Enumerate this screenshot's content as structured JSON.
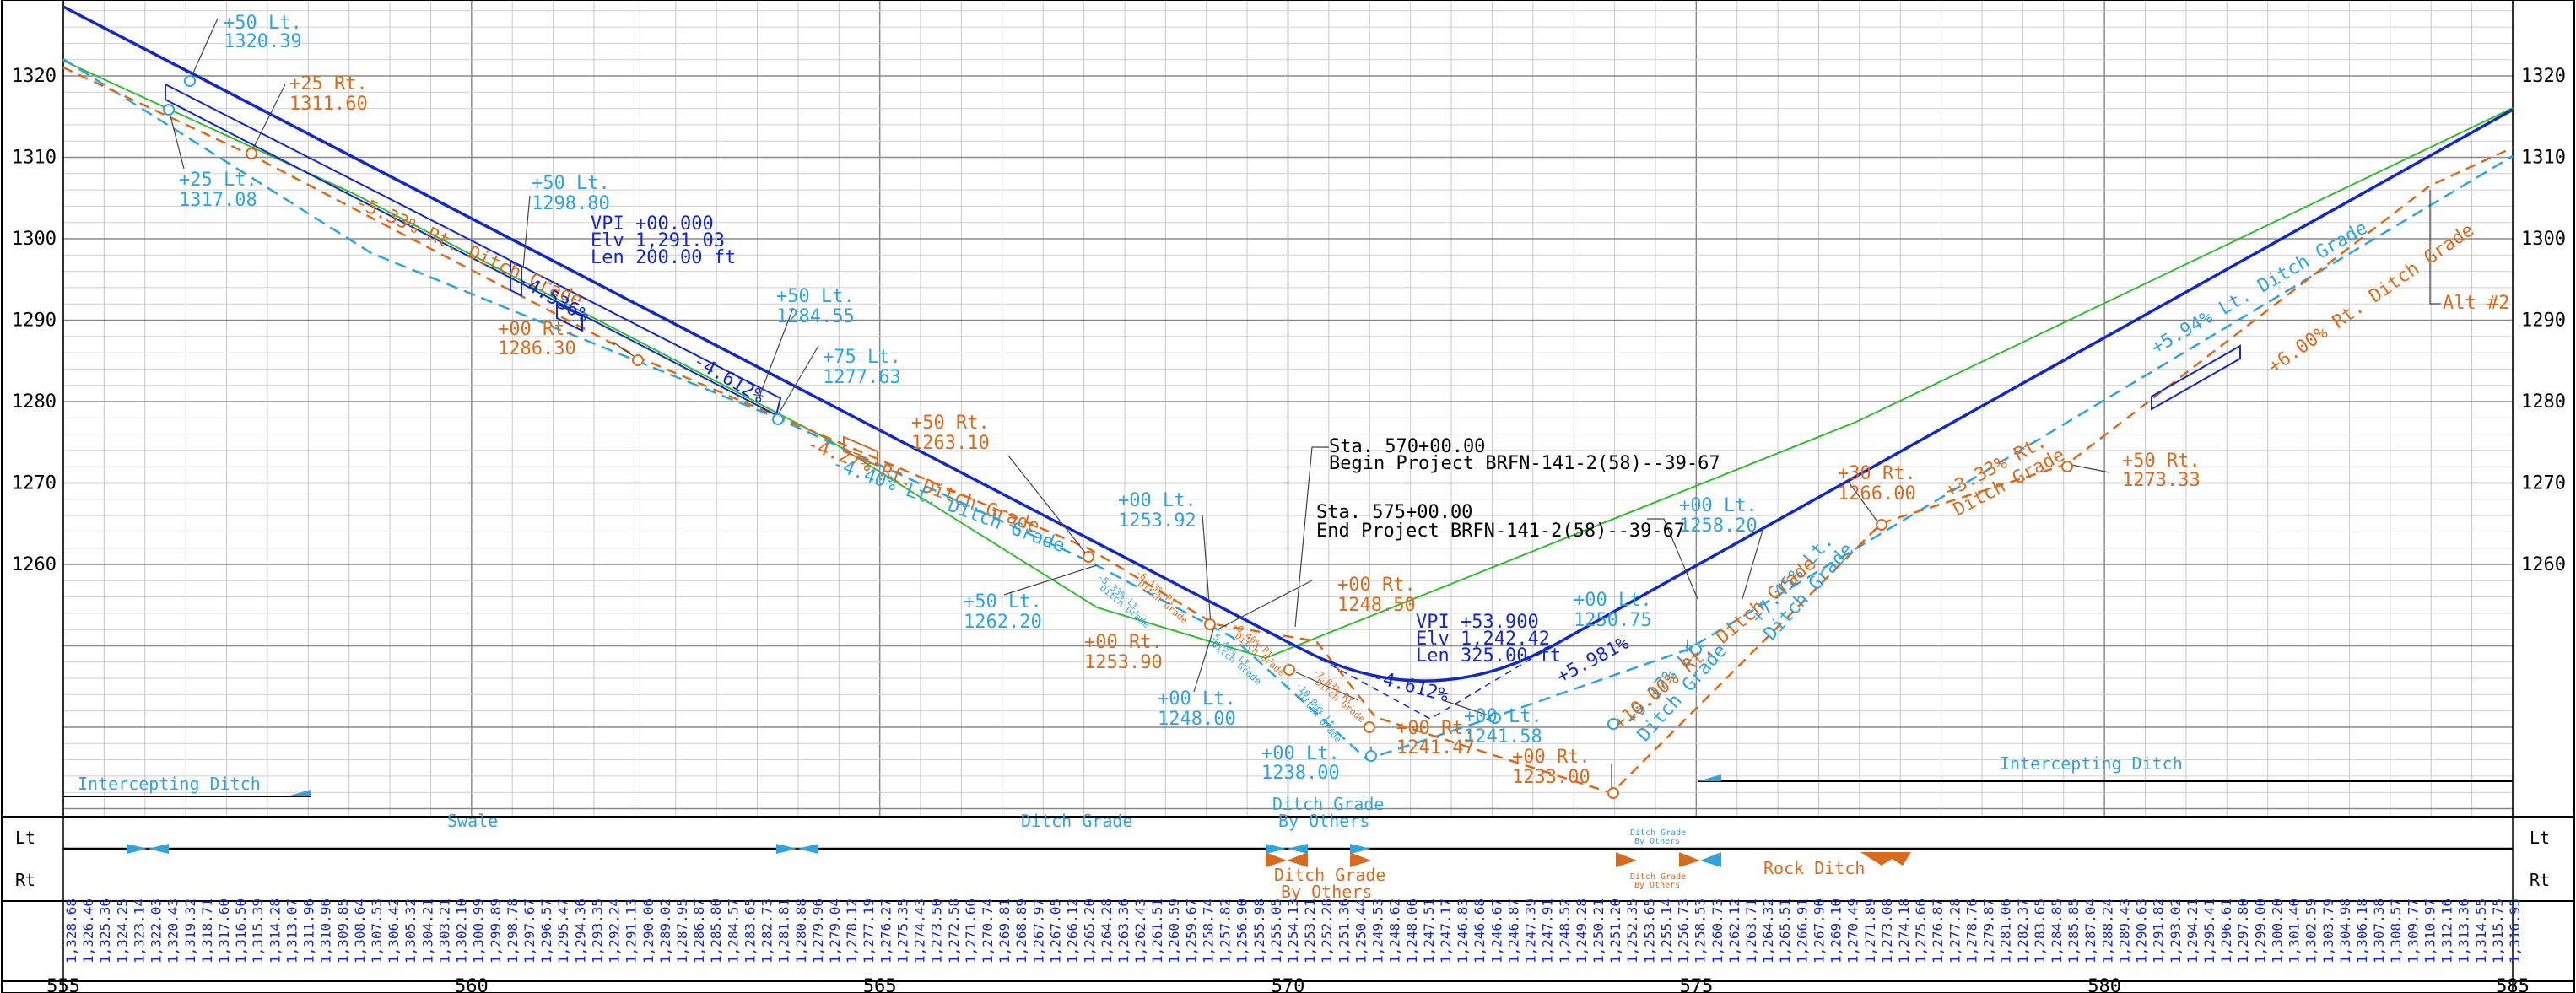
{
  "axes": {
    "elev_labels": [
      "1320",
      "1310",
      "1300",
      "1290",
      "1280",
      "1270",
      "1260"
    ],
    "station_labels": [
      "555",
      "560",
      "565",
      "570",
      "575",
      "580",
      "585"
    ]
  },
  "profile_labels": [
    {
      "text": "+50 Lt.",
      "c": "blue"
    },
    {
      "text": "1320.39",
      "c": "blue"
    },
    {
      "text": "+25 Rt.",
      "c": "orange"
    },
    {
      "text": "1311.60",
      "c": "orange"
    },
    {
      "text": "+25 Lt.",
      "c": "blue"
    },
    {
      "text": "1317.08",
      "c": "blue"
    },
    {
      "text": "+50 Lt.",
      "c": "blue"
    },
    {
      "text": "1298.80",
      "c": "blue"
    },
    {
      "text": "VPI +00.000",
      "c": "navy"
    },
    {
      "text": "Elv 1,291.03",
      "c": "navy"
    },
    {
      "text": "Len 200.00 ft",
      "c": "navy"
    },
    {
      "text": "-5.33% Rt. Ditch Grade",
      "c": "orange"
    },
    {
      "text": "-4.536%",
      "c": "navy"
    },
    {
      "text": "+00 Rt.",
      "c": "orange"
    },
    {
      "text": "1286.30",
      "c": "orange"
    },
    {
      "text": "+50 Lt.",
      "c": "blue"
    },
    {
      "text": "1284.55",
      "c": "blue"
    },
    {
      "text": "-4.612%",
      "c": "navy"
    },
    {
      "text": "+75 Lt.",
      "c": "blue"
    },
    {
      "text": "1277.63",
      "c": "blue"
    },
    {
      "text": "-4.27% Rt. Ditch Grade",
      "c": "orange"
    },
    {
      "text": "-4.40% Lt. Ditch Grade",
      "c": "blue"
    },
    {
      "text": "+50 Rt.",
      "c": "orange"
    },
    {
      "text": "1263.10",
      "c": "orange"
    },
    {
      "text": "Sta. 570+00.00",
      "c": "black"
    },
    {
      "text": "Begin Project BRFN-141-2(58)--39-67",
      "c": "black"
    },
    {
      "text": "Sta. 575+00.00",
      "c": "black"
    },
    {
      "text": "End Project BRFN-141-2(58)--39-67",
      "c": "black"
    },
    {
      "text": "+00 Lt.",
      "c": "blue"
    },
    {
      "text": "1253.92",
      "c": "blue"
    },
    {
      "text": "+50 Lt.",
      "c": "blue"
    },
    {
      "text": "1262.20",
      "c": "blue"
    },
    {
      "text": "+00 Rt.",
      "c": "orange"
    },
    {
      "text": "1253.90",
      "c": "orange"
    },
    {
      "text": "+00 Rt.",
      "c": "orange"
    },
    {
      "text": "1248.50",
      "c": "orange"
    },
    {
      "text": "VPI +53.900",
      "c": "navy"
    },
    {
      "text": "Elv 1,242.42",
      "c": "navy"
    },
    {
      "text": "Len 325.00 ft",
      "c": "navy"
    },
    {
      "text": "-4.612%",
      "c": "navy"
    },
    {
      "text": "+5.981%",
      "c": "navy"
    },
    {
      "text": "+00 Lt.",
      "c": "blue"
    },
    {
      "text": "1248.00",
      "c": "blue"
    },
    {
      "text": "+00 Rt.",
      "c": "orange"
    },
    {
      "text": "1241.47",
      "c": "orange"
    },
    {
      "text": "+00 Lt.",
      "c": "blue"
    },
    {
      "text": "1238.00",
      "c": "blue"
    },
    {
      "text": "+00 Lt.",
      "c": "blue"
    },
    {
      "text": "1241.58",
      "c": "blue"
    },
    {
      "text": "+00 Lt.",
      "c": "blue"
    },
    {
      "text": "1250.75",
      "c": "blue"
    },
    {
      "text": "+00 Lt.",
      "c": "blue"
    },
    {
      "text": "1258.20",
      "c": "blue"
    },
    {
      "text": "+00 Rt.",
      "c": "orange"
    },
    {
      "text": "1233.00",
      "c": "orange"
    },
    {
      "text": "+9.17% Lt.",
      "c": "blue"
    },
    {
      "text": "Ditch Grade",
      "c": "blue"
    },
    {
      "text": "+7.45% Lt.",
      "c": "blue"
    },
    {
      "text": "Ditch Grade",
      "c": "blue"
    },
    {
      "text": "+10.00% Rt. Ditch Grade",
      "c": "orange"
    },
    {
      "text": "+30 Rt.",
      "c": "orange"
    },
    {
      "text": "1266.00",
      "c": "orange"
    },
    {
      "text": "+3.33% Rt.",
      "c": "orange"
    },
    {
      "text": "Ditch Grade",
      "c": "orange"
    },
    {
      "text": "+50 Rt.",
      "c": "orange"
    },
    {
      "text": "1273.33",
      "c": "orange"
    },
    {
      "text": "+5.94% Lt. Ditch Grade",
      "c": "blue"
    },
    {
      "text": "+6.00% Rt. Ditch Grade",
      "c": "orange"
    },
    {
      "text": "Alt #2",
      "c": "orange"
    }
  ],
  "small_labels": [
    {
      "text": "-6.13% Rt.",
      "c": "orange"
    },
    {
      "text": "Ditch Grade",
      "c": "orange"
    },
    {
      "text": "-5.33% Lt.",
      "c": "blue"
    },
    {
      "text": "Ditch Grade",
      "c": "blue"
    },
    {
      "text": "-6.40% Rt.",
      "c": "orange"
    },
    {
      "text": "Ditch Grade",
      "c": "orange"
    },
    {
      "text": "-5.40% Lt.",
      "c": "blue"
    },
    {
      "text": "Ditch Grade",
      "c": "blue"
    },
    {
      "text": "-7.03% Rt.",
      "c": "orange"
    },
    {
      "text": "Ditch Grade",
      "c": "orange"
    },
    {
      "text": "-10.00% Lt.",
      "c": "blue"
    },
    {
      "text": "Ditch Grade",
      "c": "blue"
    }
  ],
  "ditch_bands": {
    "lt_label": "Lt",
    "rt_label": "Rt",
    "items": [
      {
        "text": "Intercepting Ditch",
        "c": "blue"
      },
      {
        "text": "Swale",
        "c": "blue"
      },
      {
        "text": "Ditch Grade",
        "c": "blue"
      },
      {
        "text": "Ditch Grade",
        "c": "blue"
      },
      {
        "text": "By Others",
        "c": "blue"
      },
      {
        "text": "Ditch Grade",
        "c": "orange"
      },
      {
        "text": "By Others",
        "c": "orange"
      },
      {
        "text": "Intercepting Ditch",
        "c": "blue"
      },
      {
        "text": "Rock Ditch",
        "c": "orange"
      },
      {
        "text": "Ditch Grade",
        "c": "blue"
      },
      {
        "text": "By Others",
        "c": "blue"
      },
      {
        "text": "Ditch Grade",
        "c": "orange"
      },
      {
        "text": "By Others",
        "c": "orange"
      }
    ]
  },
  "station_elevations": [
    "1,328.68",
    "1,326.46",
    "1,325.36",
    "1,324.25",
    "1,323.14",
    "1,322.03",
    "1,320.43",
    "1,319.32",
    "1,318.71",
    "1,317.60",
    "1,316.50",
    "1,315.39",
    "1,314.28",
    "1,313.07",
    "1,311.96",
    "1,310.96",
    "1,309.85",
    "1,308.64",
    "1,307.53",
    "1,306.42",
    "1,305.32",
    "1,304.21",
    "1,303.21",
    "1,302.10",
    "1,300.99",
    "1,299.89",
    "1,298.78",
    "1,297.67",
    "1,296.57",
    "1,295.47",
    "1,294.36",
    "1,293.35",
    "1,292.24",
    "1,291.13",
    "1,290.06",
    "1,289.02",
    "1,287.95",
    "1,286.87",
    "1,285.80",
    "1,284.57",
    "1,283.65",
    "1,282.73",
    "1,281.81",
    "1,280.88",
    "1,279.96",
    "1,279.04",
    "1,278.12",
    "1,277.19",
    "1,276.27",
    "1,275.35",
    "1,274.43",
    "1,273.50",
    "1,272.58",
    "1,271.66",
    "1,270.74",
    "1,269.81",
    "1,268.89",
    "1,267.97",
    "1,267.05",
    "1,266.12",
    "1,265.20",
    "1,264.28",
    "1,263.36",
    "1,262.43",
    "1,261.51",
    "1,260.59",
    "1,259.67",
    "1,258.74",
    "1,257.82",
    "1,256.90",
    "1,255.98",
    "1,255.05",
    "1,254.13",
    "1,253.21",
    "1,252.28",
    "1,251.36",
    "1,250.44",
    "1,249.53",
    "1,248.62",
    "1,248.06",
    "1,247.51",
    "1,247.17",
    "1,246.83",
    "1,246.68",
    "1,246.67",
    "1,246.87",
    "1,247.39",
    "1,247.91",
    "1,248.52",
    "1,249.28",
    "1,250.21",
    "1,251.20",
    "1,252.35",
    "1,253.65",
    "1,255.14",
    "1,256.73",
    "1,258.53",
    "1,260.73",
    "1,262.12",
    "1,263.71",
    "1,264.32",
    "1,265.51",
    "1,266.91",
    "1,267.90",
    "1,269.10",
    "1,270.49",
    "1,271.89",
    "1,273.08",
    "1,274.18",
    "1,275.66",
    "1,276.87",
    "1,277.28",
    "1,278.76",
    "1,279.87",
    "1,281.06",
    "1,282.37",
    "1,283.65",
    "1,284.85",
    "1,285.85",
    "1,287.04",
    "1,288.24",
    "1,289.43",
    "1,290.63",
    "1,291.82",
    "1,293.02",
    "1,294.21",
    "1,295.41",
    "1,296.61",
    "1,297.80",
    "1,299.00",
    "1,300.20",
    "1,301.40",
    "1,302.59",
    "1,303.79",
    "1,304.98",
    "1,306.18",
    "1,307.38",
    "1,308.57",
    "1,309.77",
    "1,310.97",
    "1,312.16",
    "1,313.36",
    "1,314.55",
    "1,315.75",
    "1,316.95"
  ]
}
